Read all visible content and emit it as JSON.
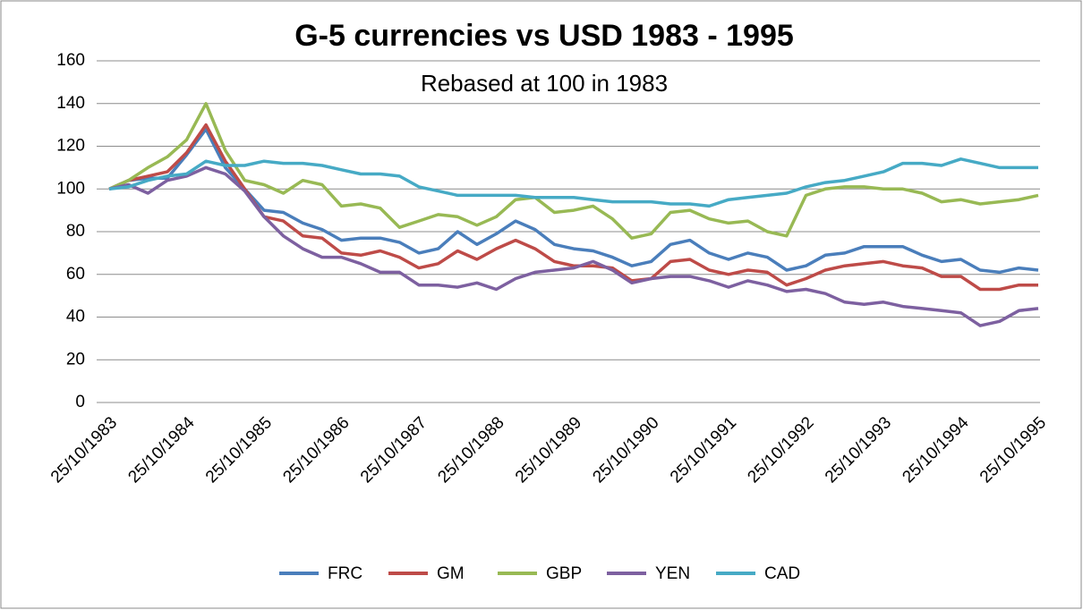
{
  "chart_data": {
    "type": "line",
    "title": "G-5 currencies vs USD 1983 - 1995",
    "subtitle": "Rebased at 100 in 1983",
    "categories": [
      "25/10/1983",
      null,
      null,
      null,
      "25/10/1984",
      null,
      null,
      null,
      "25/10/1985",
      null,
      null,
      null,
      "25/10/1986",
      null,
      null,
      null,
      "25/10/1987",
      null,
      null,
      null,
      "25/10/1988",
      null,
      null,
      null,
      "25/10/1989",
      null,
      null,
      null,
      "25/10/1990",
      null,
      null,
      null,
      "25/10/1991",
      null,
      null,
      null,
      "25/10/1992",
      null,
      null,
      null,
      "25/10/1993",
      null,
      null,
      null,
      "25/10/1994",
      null,
      null,
      null,
      "25/10/1995"
    ],
    "series": [
      {
        "name": "FRC",
        "color": "#4a7ebb",
        "values": [
          100,
          104,
          105,
          105,
          116,
          128,
          110,
          100,
          90,
          89,
          84,
          81,
          76,
          77,
          77,
          75,
          70,
          72,
          80,
          74,
          79,
          85,
          81,
          74,
          72,
          71,
          68,
          64,
          66,
          74,
          76,
          70,
          67,
          70,
          68,
          62,
          64,
          69,
          70,
          73,
          73,
          73,
          69,
          66,
          67,
          62,
          61,
          63,
          62
        ]
      },
      {
        "name": "GM",
        "color": "#be4b48",
        "values": [
          100,
          104,
          106,
          108,
          117,
          130,
          113,
          100,
          87,
          85,
          78,
          77,
          70,
          69,
          71,
          68,
          63,
          65,
          71,
          67,
          72,
          76,
          72,
          66,
          64,
          64,
          63,
          57,
          58,
          66,
          67,
          62,
          60,
          62,
          61,
          55,
          58,
          62,
          64,
          65,
          66,
          64,
          63,
          59,
          59,
          53,
          53,
          55,
          55
        ]
      },
      {
        "name": "GBP",
        "color": "#98b954",
        "values": [
          100,
          104,
          110,
          115,
          123,
          140,
          118,
          104,
          102,
          98,
          104,
          102,
          92,
          93,
          91,
          82,
          85,
          88,
          87,
          83,
          87,
          95,
          96,
          89,
          90,
          92,
          86,
          77,
          79,
          89,
          90,
          86,
          84,
          85,
          80,
          78,
          97,
          100,
          101,
          101,
          100,
          100,
          98,
          94,
          95,
          93,
          94,
          95,
          97
        ]
      },
      {
        "name": "YEN",
        "color": "#7d60a0",
        "values": [
          100,
          102,
          98,
          104,
          106,
          110,
          107,
          99,
          87,
          78,
          72,
          68,
          68,
          65,
          61,
          61,
          55,
          55,
          54,
          56,
          53,
          58,
          61,
          62,
          63,
          66,
          62,
          56,
          58,
          59,
          59,
          57,
          54,
          57,
          55,
          52,
          53,
          51,
          47,
          46,
          47,
          45,
          44,
          43,
          42,
          36,
          38,
          43,
          44
        ]
      },
      {
        "name": "CAD",
        "color": "#46aac5",
        "values": [
          100,
          101,
          104,
          106,
          107,
          113,
          111,
          111,
          113,
          112,
          112,
          111,
          109,
          107,
          107,
          106,
          101,
          99,
          97,
          97,
          97,
          97,
          96,
          96,
          96,
          95,
          94,
          94,
          94,
          93,
          93,
          92,
          95,
          96,
          97,
          98,
          101,
          103,
          104,
          106,
          108,
          112,
          112,
          111,
          114,
          112,
          110,
          110,
          110
        ]
      }
    ],
    "ylim": [
      0,
      160
    ],
    "yticks": [
      0,
      20,
      40,
      60,
      80,
      100,
      120,
      140,
      160
    ],
    "grid": true,
    "legend": "bottom"
  }
}
